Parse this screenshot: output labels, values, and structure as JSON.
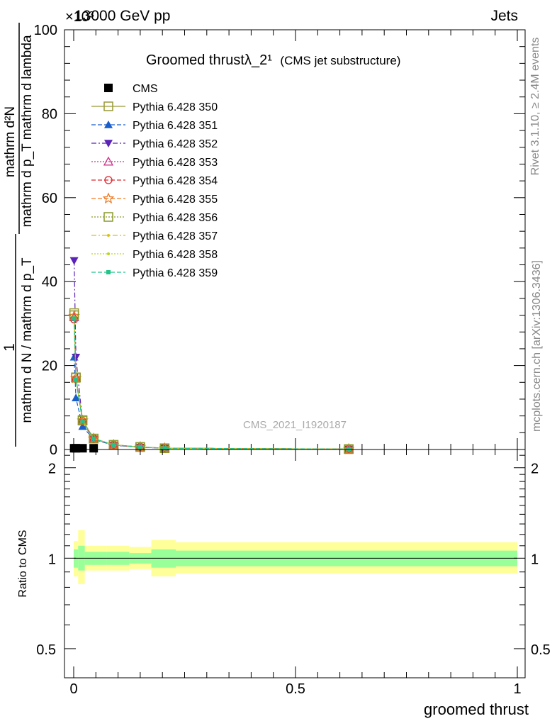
{
  "header": {
    "left": "13000 GeV pp",
    "right": "Jets",
    "exponent": "×10³"
  },
  "side_labels": {
    "rivet": "Rivet 3.1.10, ≥ 2.4M events",
    "mcplots": "mcplots.cern.ch [arXiv:1306.3436]"
  },
  "watermark": "CMS_2021_I1920187",
  "colors": {
    "band_outer": "#ffff99",
    "band_inner": "#99ff99"
  },
  "chart_data": [
    {
      "type": "line",
      "title": "Groomed thrustλ_2¹",
      "subtitle": "(CMS jet substructure)",
      "ylabel_num": "mathrm d²N",
      "ylabel_den": "mathrm d p_T mathrm d lambda",
      "ylabel_left_num": "1",
      "ylabel_left_den": "mathrm d N / mathrm d p_T",
      "xlim": [
        0,
        1
      ],
      "ylim": [
        0,
        100
      ],
      "yticks": [
        0,
        20,
        40,
        60,
        80,
        100
      ],
      "xticks": [
        0,
        0.5,
        1
      ],
      "xtick_labels": [
        "0",
        "0.5",
        "1"
      ],
      "x": [
        0.001,
        0.005,
        0.02,
        0.045,
        0.09,
        0.15,
        0.205,
        0.62
      ],
      "legend": {
        "placement": "top-left"
      },
      "series": [
        {
          "name": "CMS",
          "color": "#000000",
          "marker": "square-filled",
          "dash": "none",
          "values": [
            0.3,
            0.3,
            0.3,
            0.3,
            null,
            null,
            null,
            null
          ]
        },
        {
          "name": "Pythia 6.428 350",
          "color": "#999933",
          "marker": "square-open",
          "dash": "solid",
          "values": [
            32.5,
            17.2,
            7.0,
            2.6,
            1.1,
            0.6,
            0.3,
            0.1
          ]
        },
        {
          "name": "Pythia 6.428 351",
          "color": "#1a5ecc",
          "marker": "triangle-up",
          "dash": "dashed",
          "values": [
            22.0,
            12.3,
            5.5,
            2.4,
            1.0,
            0.55,
            0.3,
            0.1
          ]
        },
        {
          "name": "Pythia 6.428 352",
          "color": "#5a22b8",
          "marker": "triangle-down",
          "dash": "dashdot",
          "values": [
            45.0,
            22.0,
            6.5,
            2.5,
            1.0,
            0.55,
            0.3,
            0.1
          ]
        },
        {
          "name": "Pythia 6.428 353",
          "color": "#cc3388",
          "marker": "triangle-open",
          "dash": "dotted",
          "values": [
            31.5,
            17.0,
            6.9,
            2.6,
            1.1,
            0.6,
            0.3,
            0.1
          ]
        },
        {
          "name": "Pythia 6.428 354",
          "color": "#e0262b",
          "marker": "circle-open",
          "dash": "dashed",
          "values": [
            31.0,
            16.8,
            6.8,
            2.6,
            1.1,
            0.6,
            0.3,
            0.1
          ]
        },
        {
          "name": "Pythia 6.428 355",
          "color": "#f07a20",
          "marker": "star-open",
          "dash": "dashed",
          "values": [
            31.8,
            17.0,
            6.9,
            2.6,
            1.1,
            0.6,
            0.3,
            0.1
          ]
        },
        {
          "name": "Pythia 6.428 356",
          "color": "#8a9a2a",
          "marker": "square-open",
          "dash": "dotted",
          "values": [
            32.0,
            17.1,
            6.9,
            2.6,
            1.1,
            0.6,
            0.3,
            0.1
          ]
        },
        {
          "name": "Pythia 6.428 357",
          "color": "#d4c21c",
          "marker": "dot",
          "dash": "dashdot",
          "values": [
            31.6,
            16.9,
            6.8,
            2.6,
            1.1,
            0.6,
            0.3,
            0.1
          ]
        },
        {
          "name": "Pythia 6.428 358",
          "color": "#b8d61e",
          "marker": "dot",
          "dash": "dotted",
          "values": [
            31.4,
            16.9,
            6.8,
            2.6,
            1.1,
            0.6,
            0.3,
            0.1
          ]
        },
        {
          "name": "Pythia 6.428 359",
          "color": "#22c48a",
          "marker": "square-small",
          "dash": "dashed",
          "values": [
            31.2,
            16.6,
            6.7,
            2.6,
            1.1,
            0.6,
            0.3,
            0.1
          ]
        }
      ]
    },
    {
      "type": "area",
      "ylabel": "Ratio to CMS",
      "xlabel": "groomed thrust",
      "xlim": [
        0,
        1
      ],
      "ylim": [
        0.4,
        2.3
      ],
      "yscale": "log",
      "yticks": [
        0.5,
        1,
        2
      ],
      "ytick_labels": [
        "0.5",
        "1",
        "2"
      ],
      "xticks": [
        0,
        0.5,
        1
      ],
      "xtick_labels": [
        "0",
        "0.5",
        "1"
      ],
      "bins": [
        {
          "x0": 0.0,
          "x1": 0.01,
          "inner": [
            0.93,
            1.07
          ],
          "outer": [
            0.87,
            1.14
          ]
        },
        {
          "x0": 0.01,
          "x1": 0.025,
          "inner": [
            0.91,
            1.1
          ],
          "outer": [
            0.82,
            1.24
          ]
        },
        {
          "x0": 0.025,
          "x1": 0.075,
          "inner": [
            0.95,
            1.05
          ],
          "outer": [
            0.91,
            1.1
          ]
        },
        {
          "x0": 0.075,
          "x1": 0.125,
          "inner": [
            0.95,
            1.05
          ],
          "outer": [
            0.91,
            1.1
          ]
        },
        {
          "x0": 0.125,
          "x1": 0.175,
          "inner": [
            0.96,
            1.04
          ],
          "outer": [
            0.92,
            1.09
          ]
        },
        {
          "x0": 0.175,
          "x1": 0.23,
          "inner": [
            0.93,
            1.07
          ],
          "outer": [
            0.87,
            1.15
          ]
        },
        {
          "x0": 0.23,
          "x1": 1.0,
          "inner": [
            0.94,
            1.06
          ],
          "outer": [
            0.89,
            1.13
          ]
        }
      ],
      "reference": 1
    }
  ]
}
